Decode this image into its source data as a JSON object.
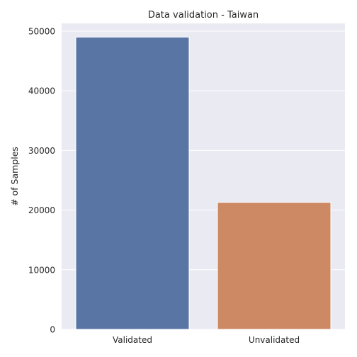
{
  "chart_data": {
    "type": "bar",
    "title": "Data validation - Taiwan",
    "xlabel": "",
    "ylabel": "# of Samples",
    "categories": [
      "Validated",
      "Unvalidated"
    ],
    "values": [
      49000,
      21300
    ],
    "colors": [
      "#5875a4",
      "#cc8963"
    ],
    "ylim": [
      0,
      51300
    ],
    "yticks": [
      0,
      10000,
      20000,
      30000,
      40000,
      50000
    ],
    "grid": true,
    "background": "#eaeaf2"
  }
}
